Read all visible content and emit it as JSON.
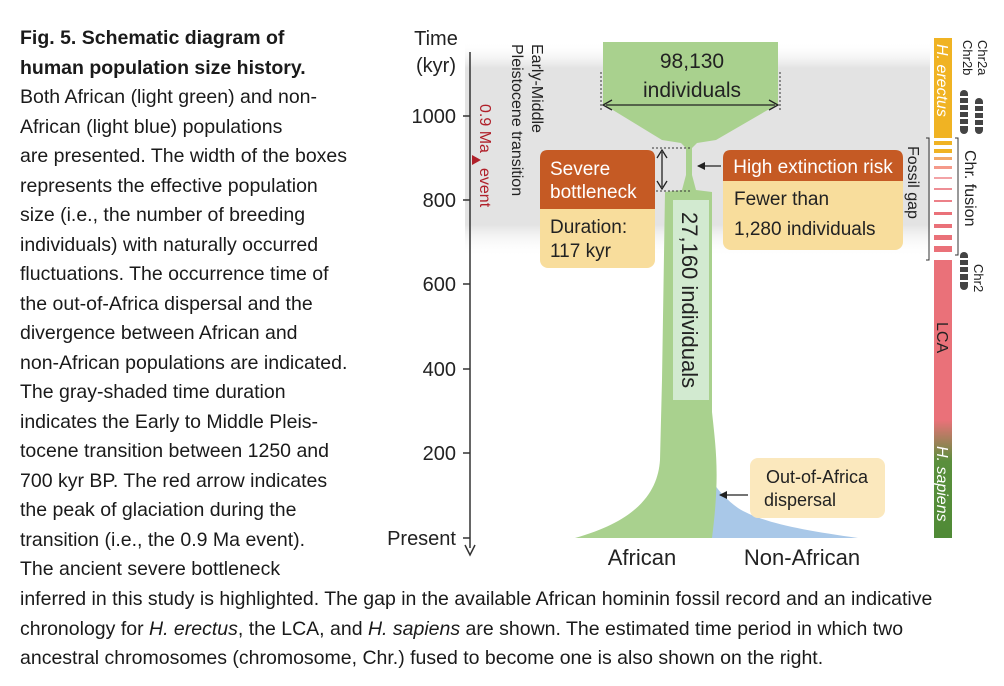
{
  "figure": {
    "label": "Fig. 5.",
    "title_line1": "Schematic diagram of",
    "title_line2": "human population size history."
  },
  "caption_side_lines": [
    "Both African (light green) and non-",
    "African (light blue) populations",
    "are presented. The width of the boxes",
    "represents the effective population",
    "size (i.e., the number of breeding",
    "individuals) with naturally occurred",
    "fluctuations. The occurrence time of",
    "the out-of-Africa dispersal and the",
    "divergence between African and",
    "non-African populations are indicated.",
    "The gray-shaded time duration",
    "indicates the Early to Middle Pleis-",
    "tocene transition between 1250 and",
    "700 kyr BP. The red arrow indicates",
    "the peak of glaciation during the",
    "transition (i.e., the 0.9 Ma event).",
    "The ancient severe bottleneck"
  ],
  "caption_bottom": {
    "line1": "inferred in this study is highlighted. The gap in the available African hominin fossil record and an indicative",
    "line2_a": "chronology for ",
    "line2_i1": "H. erectus",
    "line2_b": ", the LCA, and ",
    "line2_i2": "H. sapiens",
    "line2_c": " are shown. The estimated time period in which two",
    "line3": "ancestral chromosomes (chromosome, Chr.) fused to become one is also shown on the right."
  },
  "axis": {
    "title_line1": "Time",
    "title_line2": "(kyr)",
    "ticks": [
      "1000",
      "800",
      "600",
      "400",
      "200",
      "Present"
    ]
  },
  "transition": {
    "line1": "Early-Middle",
    "line2": "Pleistocene transition",
    "event_line1": "0.9 Ma",
    "event_line2": "event"
  },
  "population": {
    "top_count": "98,130",
    "top_unit": "individuals",
    "neck_label": "27,160 individuals",
    "african_label": "African",
    "nonafrican_label": "Non-African"
  },
  "bottleneck": {
    "title_line1": "Severe",
    "title_line2": "bottleneck",
    "duration_line1": "Duration:",
    "duration_line2": "117 kyr"
  },
  "risk": {
    "title": "High extinction risk",
    "line1": "Fewer than",
    "line2": "1,280 individuals"
  },
  "dispersal": {
    "line1": "Out-of-Africa",
    "line2": "dispersal"
  },
  "chronology": {
    "h_erectus": "H. erectus",
    "fossil_gap": "Fossil gap",
    "lca": "LCA",
    "h_sapiens": "H. sapiens",
    "chr2a": "Chr2a",
    "chr2b": "Chr2b",
    "chr_fusion": "Chr. fusion",
    "chr2": "Chr2"
  },
  "colors": {
    "african": "#a9d18e",
    "nonafrican": "#a9c8e8",
    "bottleneck": "#c55a24",
    "callout_fill": "#f8dd9c",
    "dispersal_fill": "#fbe8bd",
    "gray_band": "#e5e5e5",
    "event_red": "#b0202a",
    "erectus": "#f0b323",
    "lca": "#ea7179",
    "sapiens": "#5a8f3c"
  }
}
